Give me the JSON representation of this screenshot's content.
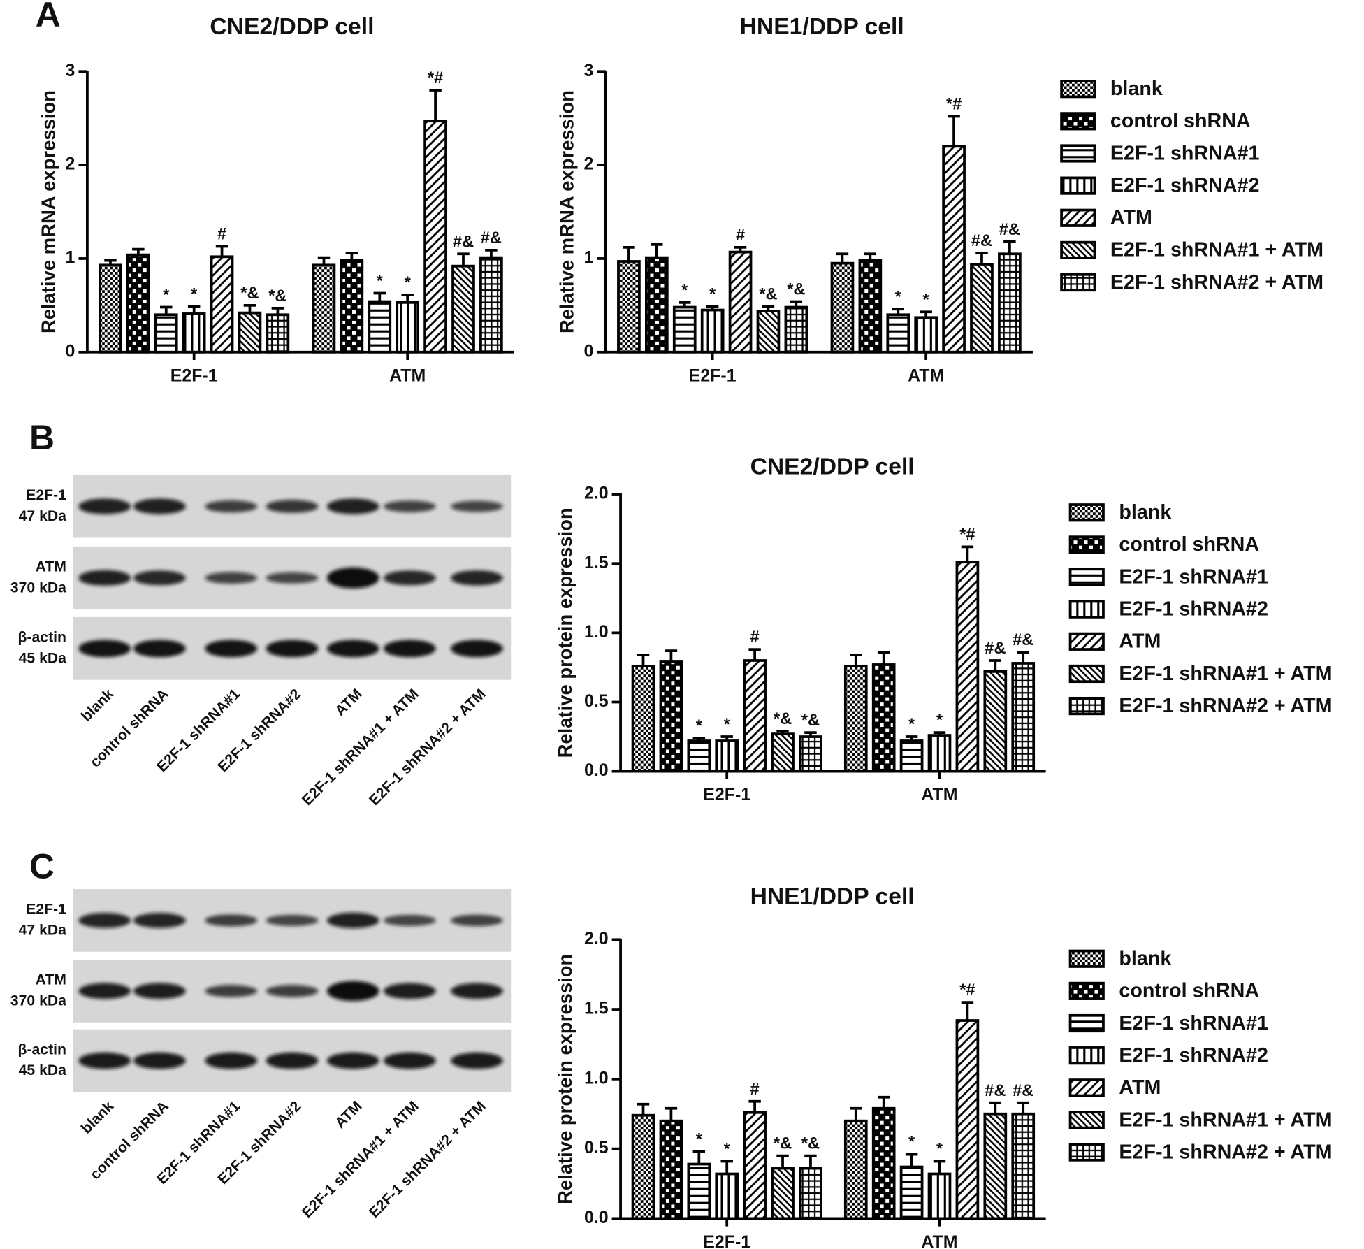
{
  "panels": [
    "A",
    "B",
    "C"
  ],
  "blots": [
    {
      "rows": [
        {
          "name": "E2F-1",
          "size": "47 kDa"
        },
        {
          "name": "ATM",
          "size": "370 kDa"
        },
        {
          "name": "β-actin",
          "size": "45 kDa"
        }
      ],
      "lanes": [
        "blank",
        "control shRNA",
        "E2F-1 shRNA#1",
        "E2F-1 shRNA#2",
        "ATM",
        "E2F-1 shRNA#1 + ATM",
        "E2F-1 shRNA#2 + ATM"
      ]
    },
    {
      "rows": [
        {
          "name": "E2F-1",
          "size": "47 kDa"
        },
        {
          "name": "ATM",
          "size": "370 kDa"
        },
        {
          "name": "β-actin",
          "size": "45 kDa"
        }
      ],
      "lanes": [
        "blank",
        "control shRNA",
        "E2F-1 shRNA#1",
        "E2F-1 shRNA#2",
        "ATM",
        "E2F-1 shRNA#1 + ATM",
        "E2F-1 shRNA#2 + ATM"
      ]
    }
  ],
  "chart_data": [
    {
      "type": "bar",
      "title": "CNE2/DDP cell",
      "ylabel": "Relative mRNA expression",
      "categories": [
        "E2F-1",
        "ATM"
      ],
      "ylim": [
        0,
        3
      ],
      "yticks": [
        0,
        1,
        2,
        3
      ],
      "legend": false,
      "series": [
        {
          "name": "blank",
          "pattern": "checker-fine",
          "color": "#000000",
          "values": [
            0.93,
            0.93
          ],
          "errors": [
            0.05,
            0.08
          ],
          "annotations": [
            null,
            null
          ]
        },
        {
          "name": "control shRNA",
          "pattern": "checker-coarse",
          "color": "#000000",
          "values": [
            1.04,
            0.98
          ],
          "errors": [
            0.06,
            0.08
          ],
          "annotations": [
            null,
            null
          ]
        },
        {
          "name": "E2F-1 shRNA#1",
          "pattern": "hlines",
          "color": "#000000",
          "values": [
            0.4,
            0.54
          ],
          "errors": [
            0.08,
            0.09
          ],
          "annotations": [
            "*",
            "*"
          ]
        },
        {
          "name": "E2F-1 shRNA#2",
          "pattern": "vlines",
          "color": "#000000",
          "values": [
            0.41,
            0.53
          ],
          "errors": [
            0.08,
            0.08
          ],
          "annotations": [
            "*",
            "*"
          ]
        },
        {
          "name": "ATM",
          "pattern": "diag-up",
          "color": "#000000",
          "values": [
            1.02,
            2.47
          ],
          "errors": [
            0.11,
            0.33
          ],
          "annotations": [
            "#",
            "*#"
          ]
        },
        {
          "name": "E2F-1 shRNA#1 + ATM",
          "pattern": "diag-down",
          "color": "#000000",
          "values": [
            0.42,
            0.92
          ],
          "errors": [
            0.08,
            0.13
          ],
          "annotations": [
            "*&",
            "#&"
          ]
        },
        {
          "name": "E2F-1 shRNA#2 + ATM",
          "pattern": "grid",
          "color": "#000000",
          "values": [
            0.4,
            1.01
          ],
          "errors": [
            0.07,
            0.08
          ],
          "annotations": [
            "*&",
            "#&"
          ]
        }
      ]
    },
    {
      "type": "bar",
      "title": "HNE1/DDP cell",
      "ylabel": "Relative mRNA expression",
      "categories": [
        "E2F-1",
        "ATM"
      ],
      "ylim": [
        0,
        3
      ],
      "yticks": [
        0,
        1,
        2,
        3
      ],
      "legend": true,
      "series": [
        {
          "name": "blank",
          "pattern": "checker-fine",
          "color": "#000000",
          "values": [
            0.97,
            0.95
          ],
          "errors": [
            0.15,
            0.1
          ],
          "annotations": [
            null,
            null
          ]
        },
        {
          "name": "control shRNA",
          "pattern": "checker-coarse",
          "color": "#000000",
          "values": [
            1.01,
            0.98
          ],
          "errors": [
            0.14,
            0.07
          ],
          "annotations": [
            null,
            null
          ]
        },
        {
          "name": "E2F-1 shRNA#1",
          "pattern": "hlines",
          "color": "#000000",
          "values": [
            0.48,
            0.4
          ],
          "errors": [
            0.05,
            0.06
          ],
          "annotations": [
            "*",
            "*"
          ]
        },
        {
          "name": "E2F-1 shRNA#2",
          "pattern": "vlines",
          "color": "#000000",
          "values": [
            0.45,
            0.37
          ],
          "errors": [
            0.04,
            0.06
          ],
          "annotations": [
            "*",
            "*"
          ]
        },
        {
          "name": "ATM",
          "pattern": "diag-up",
          "color": "#000000",
          "values": [
            1.07,
            2.2
          ],
          "errors": [
            0.05,
            0.32
          ],
          "annotations": [
            "#",
            "*#"
          ]
        },
        {
          "name": "E2F-1 shRNA#1 + ATM",
          "pattern": "diag-down",
          "color": "#000000",
          "values": [
            0.44,
            0.94
          ],
          "errors": [
            0.05,
            0.12
          ],
          "annotations": [
            "*&",
            "#&"
          ]
        },
        {
          "name": "E2F-1 shRNA#2 + ATM",
          "pattern": "grid",
          "color": "#000000",
          "values": [
            0.48,
            1.05
          ],
          "errors": [
            0.06,
            0.13
          ],
          "annotations": [
            "*&",
            "#&"
          ]
        }
      ]
    },
    {
      "type": "bar",
      "title": "CNE2/DDP cell",
      "ylabel": "Relative protein expression",
      "categories": [
        "E2F-1",
        "ATM"
      ],
      "ylim": [
        0,
        2
      ],
      "yticks": [
        {
          "value": 0,
          "label": "0.0"
        },
        {
          "value": 0.5,
          "label": "0.5"
        },
        {
          "value": 1,
          "label": "1.0"
        },
        {
          "value": 1.5,
          "label": "1.5"
        },
        {
          "value": 2,
          "label": "2.0"
        }
      ],
      "legend": true,
      "series": [
        {
          "name": "blank",
          "pattern": "checker-fine",
          "color": "#000000",
          "values": [
            0.76,
            0.76
          ],
          "errors": [
            0.08,
            0.08
          ],
          "annotations": [
            null,
            null
          ]
        },
        {
          "name": "control shRNA",
          "pattern": "checker-coarse",
          "color": "#000000",
          "values": [
            0.79,
            0.77
          ],
          "errors": [
            0.08,
            0.09
          ],
          "annotations": [
            null,
            null
          ]
        },
        {
          "name": "E2F-1 shRNA#1",
          "pattern": "hlines",
          "color": "#000000",
          "values": [
            0.22,
            0.22
          ],
          "errors": [
            0.02,
            0.03
          ],
          "annotations": [
            "*",
            "*"
          ]
        },
        {
          "name": "E2F-1 shRNA#2",
          "pattern": "vlines",
          "color": "#000000",
          "values": [
            0.22,
            0.26
          ],
          "errors": [
            0.03,
            0.02
          ],
          "annotations": [
            "*",
            "*"
          ]
        },
        {
          "name": "ATM",
          "pattern": "diag-up",
          "color": "#000000",
          "values": [
            0.8,
            1.51
          ],
          "errors": [
            0.08,
            0.11
          ],
          "annotations": [
            "#",
            "*#"
          ]
        },
        {
          "name": "E2F-1 shRNA#1 + ATM",
          "pattern": "diag-down",
          "color": "#000000",
          "values": [
            0.27,
            0.72
          ],
          "errors": [
            0.02,
            0.08
          ],
          "annotations": [
            "*&",
            "#&"
          ]
        },
        {
          "name": "E2F-1 shRNA#2 + ATM",
          "pattern": "grid",
          "color": "#000000",
          "values": [
            0.25,
            0.78
          ],
          "errors": [
            0.03,
            0.08
          ],
          "annotations": [
            "*&",
            "#&"
          ]
        }
      ]
    },
    {
      "type": "bar",
      "title": "HNE1/DDP cell",
      "ylabel": "Relative protein expression",
      "categories": [
        "E2F-1",
        "ATM"
      ],
      "ylim": [
        0,
        2
      ],
      "yticks": [
        {
          "value": 0,
          "label": "0.0"
        },
        {
          "value": 0.5,
          "label": "0.5"
        },
        {
          "value": 1,
          "label": "1.0"
        },
        {
          "value": 1.5,
          "label": "1.5"
        },
        {
          "value": 2,
          "label": "2.0"
        }
      ],
      "legend": true,
      "series": [
        {
          "name": "blank",
          "pattern": "checker-fine",
          "color": "#000000",
          "values": [
            0.74,
            0.7
          ],
          "errors": [
            0.08,
            0.09
          ],
          "annotations": [
            null,
            null
          ]
        },
        {
          "name": "control shRNA",
          "pattern": "checker-coarse",
          "color": "#000000",
          "values": [
            0.7,
            0.79
          ],
          "errors": [
            0.09,
            0.08
          ],
          "annotations": [
            null,
            null
          ]
        },
        {
          "name": "E2F-1 shRNA#1",
          "pattern": "hlines",
          "color": "#000000",
          "values": [
            0.39,
            0.37
          ],
          "errors": [
            0.09,
            0.09
          ],
          "annotations": [
            "*",
            "*"
          ]
        },
        {
          "name": "E2F-1 shRNA#2",
          "pattern": "vlines",
          "color": "#000000",
          "values": [
            0.32,
            0.32
          ],
          "errors": [
            0.09,
            0.09
          ],
          "annotations": [
            "*",
            "*"
          ]
        },
        {
          "name": "ATM",
          "pattern": "diag-up",
          "color": "#000000",
          "values": [
            0.76,
            1.42
          ],
          "errors": [
            0.08,
            0.13
          ],
          "annotations": [
            "#",
            "*#"
          ]
        },
        {
          "name": "E2F-1 shRNA#1 + ATM",
          "pattern": "diag-down",
          "color": "#000000",
          "values": [
            0.36,
            0.75
          ],
          "errors": [
            0.09,
            0.08
          ],
          "annotations": [
            "*&",
            "#&"
          ]
        },
        {
          "name": "E2F-1 shRNA#2 + ATM",
          "pattern": "grid",
          "color": "#000000",
          "values": [
            0.36,
            0.75
          ],
          "errors": [
            0.09,
            0.08
          ],
          "annotations": [
            "*&",
            "#&"
          ]
        }
      ]
    }
  ]
}
